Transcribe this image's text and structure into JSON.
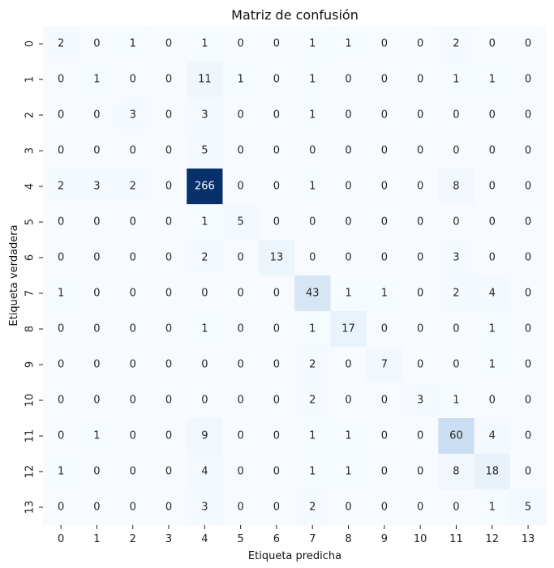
{
  "chart_data": {
    "type": "heatmap",
    "title": "Matriz de confusión",
    "xlabel": "Etiqueta predicha",
    "ylabel": "Etiqueta verdadera",
    "x_categories": [
      "0",
      "1",
      "2",
      "3",
      "4",
      "5",
      "6",
      "7",
      "8",
      "9",
      "10",
      "11",
      "12",
      "13"
    ],
    "y_categories": [
      "0",
      "1",
      "2",
      "3",
      "4",
      "5",
      "6",
      "7",
      "8",
      "9",
      "10",
      "11",
      "12",
      "13"
    ],
    "values": [
      [
        2,
        0,
        1,
        0,
        1,
        0,
        0,
        1,
        1,
        0,
        0,
        2,
        0,
        0
      ],
      [
        0,
        1,
        0,
        0,
        11,
        1,
        0,
        1,
        0,
        0,
        0,
        1,
        1,
        0
      ],
      [
        0,
        0,
        3,
        0,
        3,
        0,
        0,
        1,
        0,
        0,
        0,
        0,
        0,
        0
      ],
      [
        0,
        0,
        0,
        0,
        5,
        0,
        0,
        0,
        0,
        0,
        0,
        0,
        0,
        0
      ],
      [
        2,
        3,
        2,
        0,
        266,
        0,
        0,
        1,
        0,
        0,
        0,
        8,
        0,
        0
      ],
      [
        0,
        0,
        0,
        0,
        1,
        5,
        0,
        0,
        0,
        0,
        0,
        0,
        0,
        0
      ],
      [
        0,
        0,
        0,
        0,
        2,
        0,
        13,
        0,
        0,
        0,
        0,
        3,
        0,
        0
      ],
      [
        1,
        0,
        0,
        0,
        0,
        0,
        0,
        43,
        1,
        1,
        0,
        2,
        4,
        0
      ],
      [
        0,
        0,
        0,
        0,
        1,
        0,
        0,
        1,
        17,
        0,
        0,
        0,
        1,
        0
      ],
      [
        0,
        0,
        0,
        0,
        0,
        0,
        0,
        2,
        0,
        7,
        0,
        0,
        1,
        0
      ],
      [
        0,
        0,
        0,
        0,
        0,
        0,
        0,
        2,
        0,
        0,
        3,
        1,
        0,
        0
      ],
      [
        0,
        1,
        0,
        0,
        9,
        0,
        0,
        1,
        1,
        0,
        0,
        60,
        4,
        0
      ],
      [
        1,
        0,
        0,
        0,
        4,
        0,
        0,
        1,
        1,
        0,
        0,
        8,
        18,
        0
      ],
      [
        0,
        0,
        0,
        0,
        3,
        0,
        0,
        2,
        0,
        0,
        0,
        0,
        1,
        5
      ]
    ],
    "colormap": "Blues",
    "color_low": "#f7fbff",
    "color_high": "#08306b",
    "vmin": 0,
    "vmax": 266,
    "grid": false,
    "colorbar": false
  }
}
